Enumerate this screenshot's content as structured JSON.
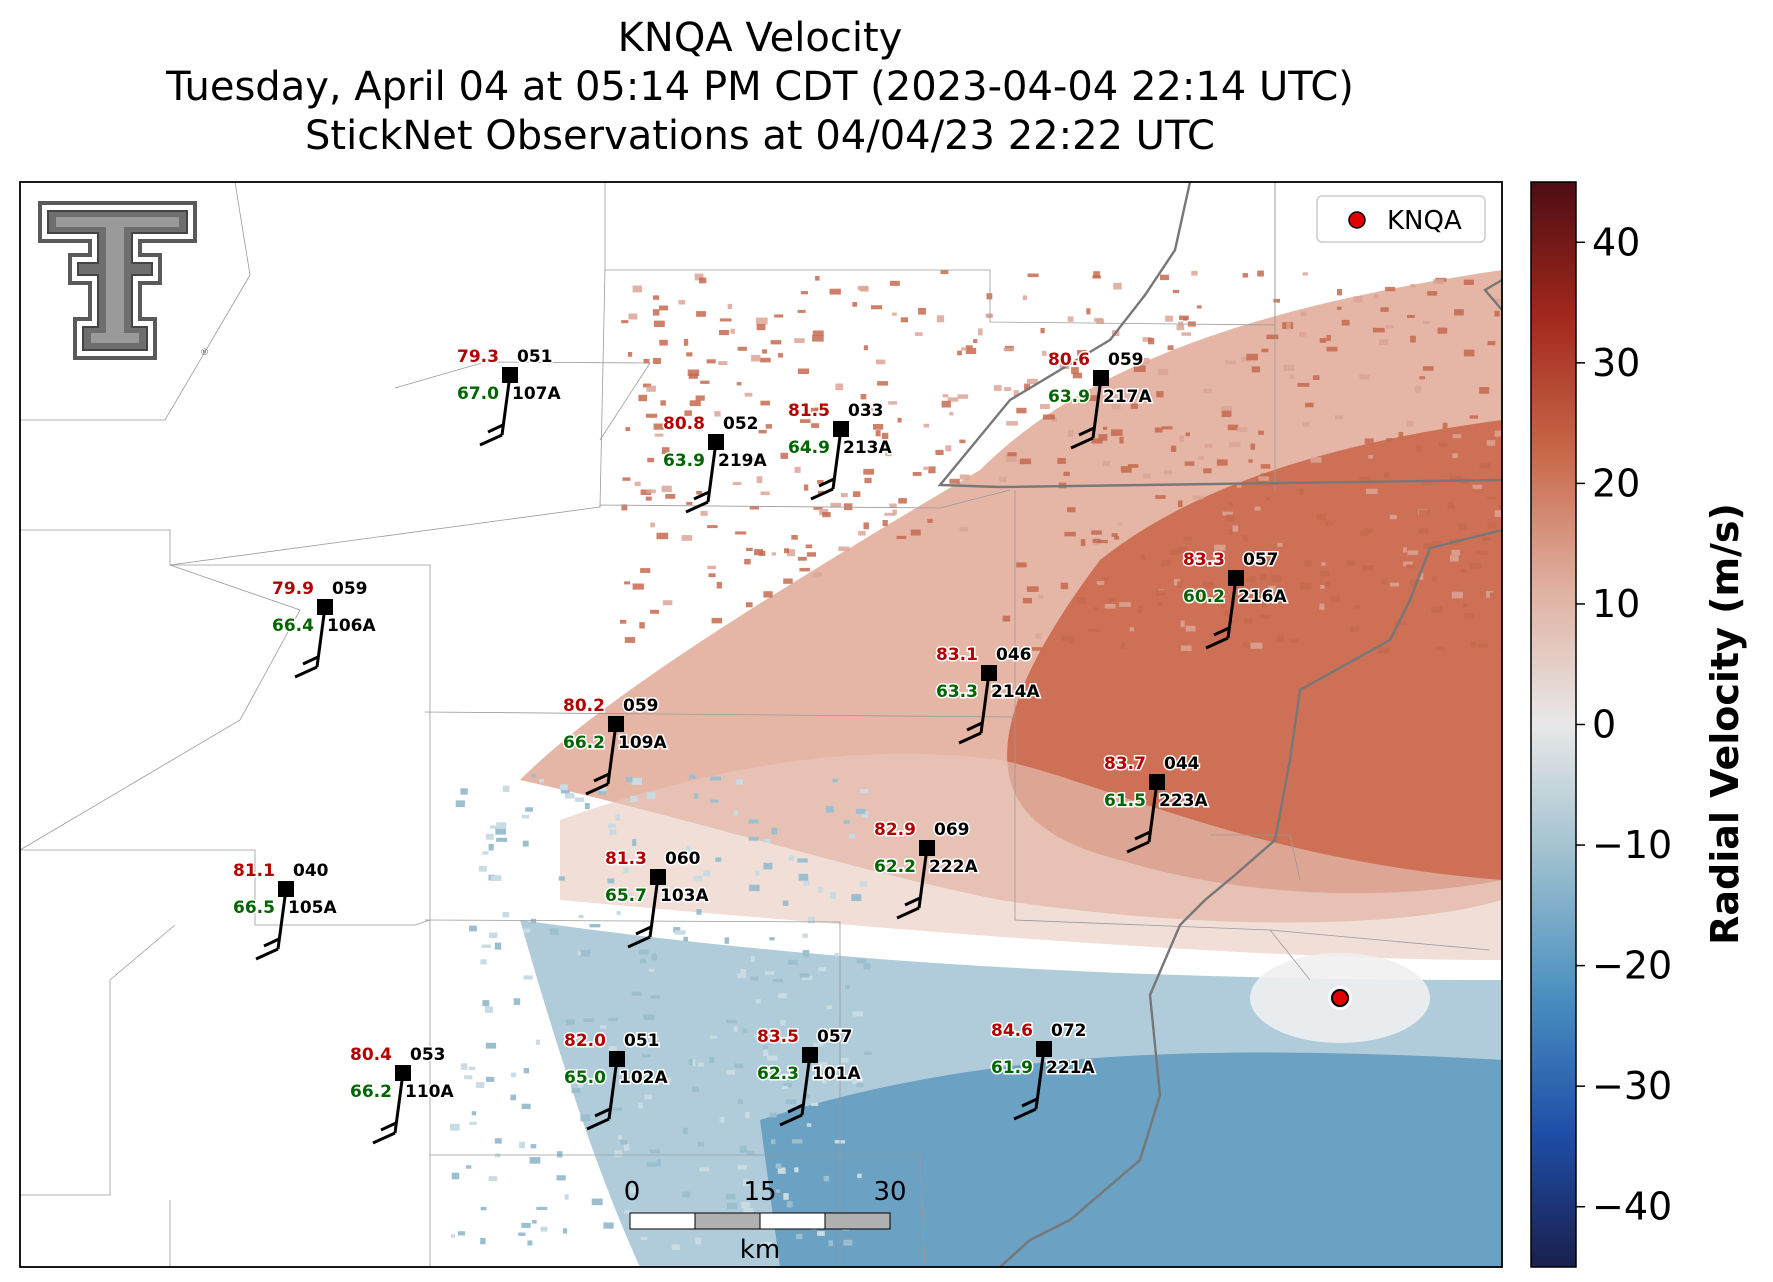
{
  "title": {
    "line1": "KNQA Velocity",
    "line2": "Tuesday, April 04 at 05:14 PM CDT (2023-04-04 22:14 UTC)",
    "line3": "StickNet Observations at 04/04/23 22:22 UTC"
  },
  "legend": {
    "label": "KNQA",
    "marker_color": "#e00000"
  },
  "colorbar": {
    "label": "Radial Velocity (m/s)",
    "range": [
      -45,
      45
    ],
    "ticks": [
      {
        "value": 40,
        "label": "40"
      },
      {
        "value": 30,
        "label": "30"
      },
      {
        "value": 20,
        "label": "20"
      },
      {
        "value": 10,
        "label": "10"
      },
      {
        "value": 0,
        "label": "0"
      },
      {
        "value": -10,
        "label": "−10"
      },
      {
        "value": -20,
        "label": "−20"
      },
      {
        "value": -30,
        "label": "−30"
      },
      {
        "value": -40,
        "label": "−40"
      }
    ],
    "colors": [
      "#1a1f4d",
      "#1f4fa8",
      "#4a8fc0",
      "#9cbfcf",
      "#e8e8e8",
      "#e0b0a0",
      "#c8684a",
      "#a3281c",
      "#4d0d14"
    ]
  },
  "scalebar": {
    "ticks": [
      "0",
      "15",
      "30"
    ],
    "unit": "km"
  },
  "stations": [
    {
      "id": "107A",
      "temp": "79.3",
      "dew": "67.0",
      "dir": "051"
    },
    {
      "id": "219A",
      "temp": "80.8",
      "dew": "63.9",
      "dir": "052"
    },
    {
      "id": "213A",
      "temp": "81.5",
      "dew": "64.9",
      "dir": "033"
    },
    {
      "id": "217A",
      "temp": "80.6",
      "dew": "63.9",
      "dir": "059"
    },
    {
      "id": "106A",
      "temp": "79.9",
      "dew": "66.4",
      "dir": "059"
    },
    {
      "id": "216A",
      "temp": "83.3",
      "dew": "60.2",
      "dir": "057"
    },
    {
      "id": "214A",
      "temp": "83.1",
      "dew": "63.3",
      "dir": "046"
    },
    {
      "id": "109A",
      "temp": "80.2",
      "dew": "66.2",
      "dir": "059"
    },
    {
      "id": "223A",
      "temp": "83.7",
      "dew": "61.5",
      "dir": "044"
    },
    {
      "id": "222A",
      "temp": "82.9",
      "dew": "62.2",
      "dir": "069"
    },
    {
      "id": "103A",
      "temp": "81.3",
      "dew": "65.7",
      "dir": "060"
    },
    {
      "id": "105A",
      "temp": "81.1",
      "dew": "66.5",
      "dir": "040"
    },
    {
      "id": "110A",
      "temp": "80.4",
      "dew": "66.2",
      "dir": "053"
    },
    {
      "id": "102A",
      "temp": "82.0",
      "dew": "65.0",
      "dir": "051"
    },
    {
      "id": "101A",
      "temp": "83.5",
      "dew": "62.3",
      "dir": "057"
    },
    {
      "id": "221A",
      "temp": "84.6",
      "dew": "61.9",
      "dir": "072"
    }
  ]
}
